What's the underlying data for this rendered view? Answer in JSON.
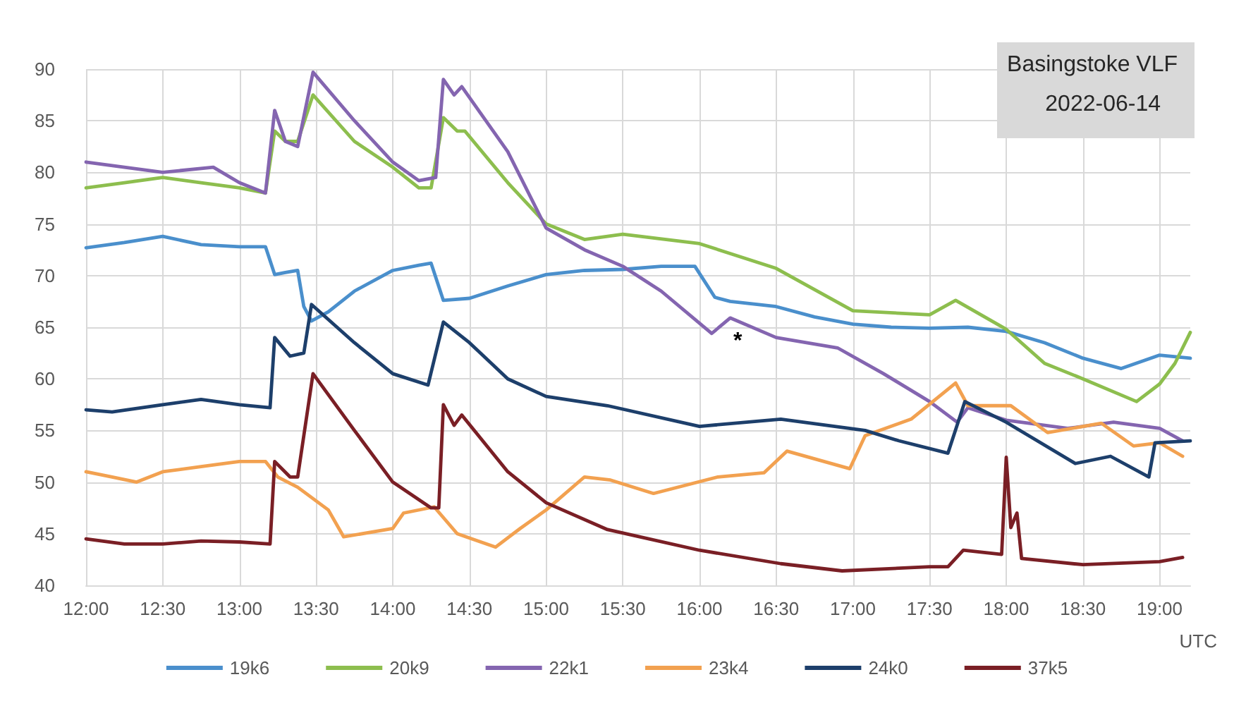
{
  "chart_data": {
    "type": "line",
    "title": "Basingstoke VLF",
    "subtitle": "2022-06-14",
    "xlabel": "UTC",
    "xlim": [
      12,
      19.2
    ],
    "ylim": [
      40,
      90
    ],
    "yticks": [
      40,
      45,
      50,
      55,
      60,
      65,
      70,
      75,
      80,
      85,
      90
    ],
    "xticks": [
      {
        "value": 12,
        "label": "12:00"
      },
      {
        "value": 12.5,
        "label": "12:30"
      },
      {
        "value": 13,
        "label": "13:00"
      },
      {
        "value": 13.5,
        "label": "13:30"
      },
      {
        "value": 14,
        "label": "14:00"
      },
      {
        "value": 14.5,
        "label": "14:30"
      },
      {
        "value": 15,
        "label": "15:00"
      },
      {
        "value": 15.5,
        "label": "15:30"
      },
      {
        "value": 16,
        "label": "16:00"
      },
      {
        "value": 16.5,
        "label": "16:30"
      },
      {
        "value": 17,
        "label": "17:00"
      },
      {
        "value": 17.5,
        "label": "17:30"
      },
      {
        "value": 18,
        "label": "18:00"
      },
      {
        "value": 18.5,
        "label": "18:30"
      },
      {
        "value": 19,
        "label": "19:00"
      }
    ],
    "grid": true,
    "legend": "bottom",
    "marker": "none",
    "line_style": "solid",
    "annotations": [
      "*"
    ],
    "series": [
      {
        "name": "19k6",
        "color": "#4a8fcc",
        "x": [
          12,
          12.25,
          12.5,
          12.75,
          13,
          13.17,
          13.23,
          13.3,
          13.38,
          13.42,
          13.47,
          13.58,
          13.75,
          14,
          14.17,
          14.25,
          14.33,
          14.5,
          14.75,
          15,
          15.25,
          15.5,
          15.75,
          15.97,
          16.1,
          16.2,
          16.5,
          16.75,
          17,
          17.25,
          17.5,
          17.75,
          18,
          18.25,
          18.5,
          18.75,
          19,
          19.2
        ],
        "values": [
          72.7,
          73.2,
          73.8,
          73,
          72.8,
          72.8,
          70.1,
          70.3,
          70.5,
          67,
          65.6,
          66.5,
          68.5,
          70.5,
          71,
          71.2,
          67.6,
          67.8,
          69,
          70.1,
          70.5,
          70.6,
          70.9,
          70.9,
          67.9,
          67.5,
          67,
          66,
          65.3,
          65,
          64.9,
          65,
          64.6,
          63.5,
          62,
          61,
          62.3,
          62
        ]
      },
      {
        "name": "20k9",
        "color": "#8dbe4e",
        "x": [
          12,
          12.25,
          12.5,
          12.75,
          13,
          13.17,
          13.23,
          13.3,
          13.38,
          13.48,
          13.75,
          14,
          14.17,
          14.25,
          14.33,
          14.42,
          14.47,
          14.75,
          15,
          15.25,
          15.5,
          16,
          16.5,
          17,
          17.5,
          17.67,
          18,
          18.25,
          18.5,
          18.85,
          19,
          19.1,
          19.2
        ],
        "values": [
          78.5,
          79,
          79.5,
          79,
          78.5,
          78,
          84,
          83,
          83,
          87.5,
          83,
          80.5,
          78.5,
          78.5,
          85.3,
          84,
          84,
          79,
          75,
          73.5,
          74,
          73.1,
          70.7,
          66.6,
          66.2,
          67.6,
          64.8,
          61.5,
          60,
          57.8,
          59.5,
          61.5,
          64.5
        ]
      },
      {
        "name": "22k1",
        "color": "#8465b0",
        "x": [
          12,
          12.25,
          12.5,
          12.83,
          13,
          13.17,
          13.23,
          13.3,
          13.38,
          13.48,
          13.75,
          14,
          14.17,
          14.28,
          14.33,
          14.4,
          14.45,
          14.75,
          15,
          15.25,
          15.5,
          15.75,
          16.08,
          16.2,
          16.5,
          16.9,
          17.2,
          17.5,
          17.68,
          17.75,
          18,
          18.4,
          18.7,
          19,
          19.15
        ],
        "values": [
          81,
          80.5,
          80,
          80.5,
          79,
          78,
          86,
          83,
          82.5,
          89.7,
          85,
          81,
          79.2,
          79.5,
          89,
          87.5,
          88.3,
          82,
          74.6,
          72.5,
          70.9,
          68.5,
          64.4,
          65.9,
          64,
          63,
          60.5,
          57.8,
          55.8,
          57.2,
          56,
          55.2,
          55.8,
          55.2,
          54
        ]
      },
      {
        "name": "23k4",
        "color": "#f2a150",
        "x": [
          12,
          12.17,
          12.33,
          12.5,
          12.75,
          13,
          13.17,
          13.25,
          13.38,
          13.58,
          13.68,
          14,
          14.07,
          14.27,
          14.42,
          14.67,
          14.83,
          15,
          15.25,
          15.42,
          15.7,
          16.12,
          16.42,
          16.57,
          16.98,
          17.08,
          17.38,
          17.67,
          17.75,
          18.03,
          18.27,
          18.62,
          18.83,
          19,
          19.15
        ],
        "values": [
          51,
          50.5,
          50,
          51,
          51.5,
          52,
          52,
          50.5,
          49.5,
          47.3,
          44.7,
          45.5,
          47,
          47.6,
          45,
          43.7,
          45.5,
          47.3,
          50.5,
          50.2,
          48.9,
          50.5,
          50.9,
          53,
          51.3,
          54.5,
          56.1,
          59.6,
          57.4,
          57.4,
          54.8,
          55.7,
          53.5,
          53.8,
          52.5
        ]
      },
      {
        "name": "24k0",
        "color": "#1d3f6b",
        "x": [
          12,
          12.17,
          12.5,
          12.75,
          13,
          13.2,
          13.23,
          13.33,
          13.42,
          13.47,
          13.75,
          14,
          14.23,
          14.33,
          14.5,
          14.75,
          15,
          15.4,
          16,
          16.53,
          17.08,
          17.3,
          17.62,
          17.73,
          18,
          18.45,
          18.68,
          18.93,
          18.97,
          19.2
        ],
        "values": [
          57,
          56.8,
          57.5,
          58,
          57.5,
          57.2,
          64,
          62.2,
          62.5,
          67.2,
          63.5,
          60.5,
          59.4,
          65.5,
          63.5,
          60,
          58.3,
          57.4,
          55.4,
          56.1,
          55,
          54,
          52.8,
          57.8,
          55.8,
          51.8,
          52.5,
          50.5,
          53.8,
          54
        ]
      },
      {
        "name": "37k5",
        "color": "#7a1f25",
        "x": [
          12,
          12.25,
          12.5,
          12.75,
          13,
          13.2,
          13.23,
          13.33,
          13.38,
          13.48,
          13.75,
          14,
          14.25,
          14.3,
          14.33,
          14.4,
          14.45,
          14.75,
          15,
          15.4,
          16,
          16.53,
          16.93,
          17.5,
          17.62,
          17.72,
          17.97,
          18,
          18.03,
          18.07,
          18.1,
          18.5,
          19,
          19.15
        ],
        "values": [
          44.5,
          44,
          44,
          44.3,
          44.2,
          44,
          52,
          50.5,
          50.5,
          60.5,
          55,
          50,
          47.5,
          47.5,
          57.5,
          55.5,
          56.5,
          51,
          48,
          45.4,
          43.4,
          42.1,
          41.4,
          41.8,
          41.8,
          43.4,
          43,
          52.4,
          45.6,
          47,
          42.6,
          42,
          42.3,
          42.7
        ]
      }
    ]
  }
}
